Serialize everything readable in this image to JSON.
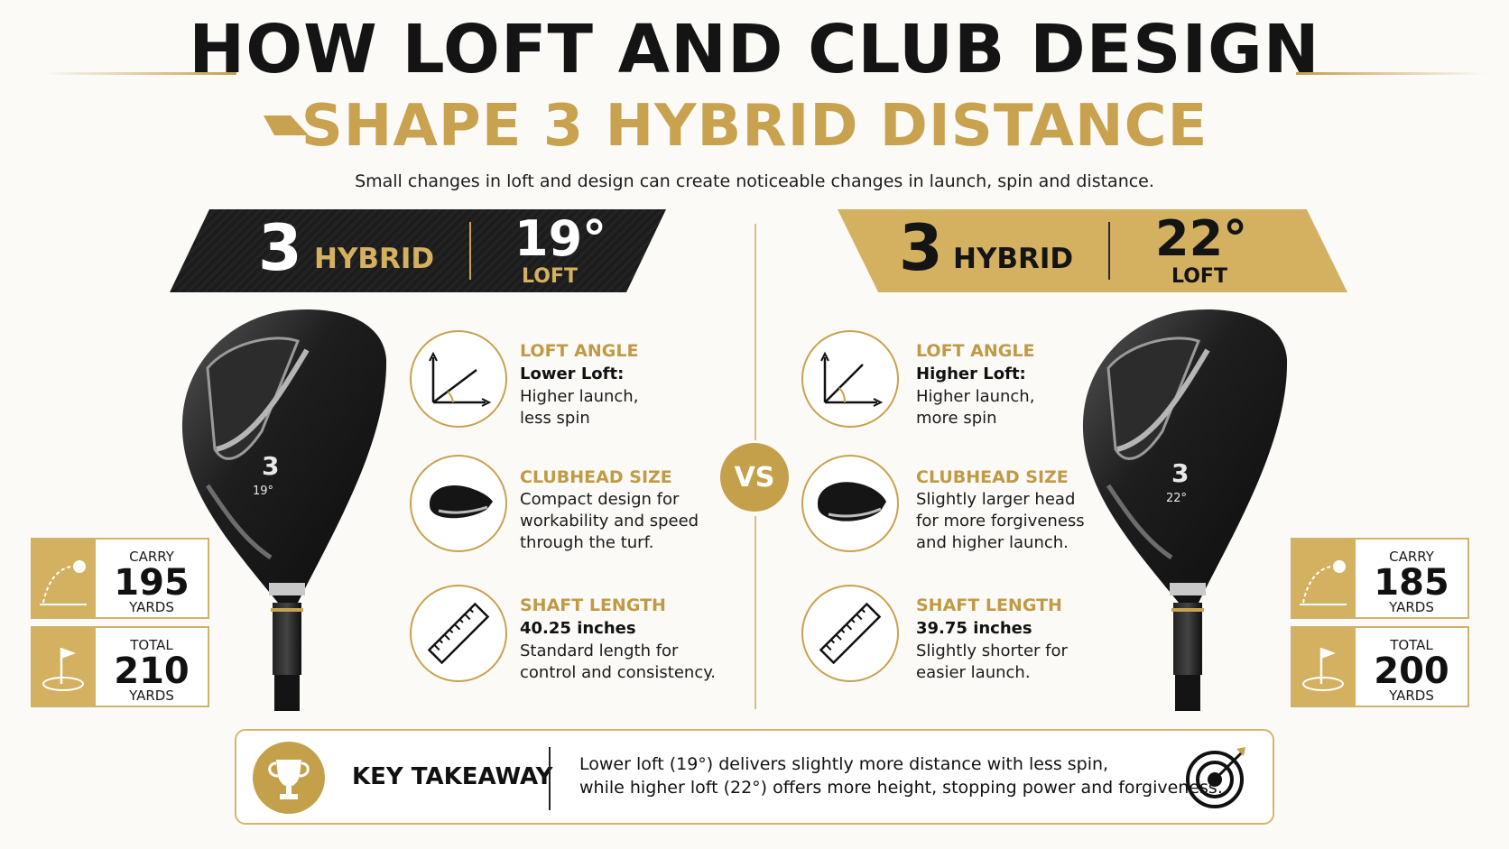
{
  "header": {
    "title": "HOW LOFT AND CLUB DESIGN",
    "subtitle": "SHAPE 3 HYBRID DISTANCE",
    "intro": "Small changes in loft and design can create noticeable changes in launch, spin and distance."
  },
  "left": {
    "club_number": "3",
    "club_type": "HYBRID",
    "loft_value": "19°",
    "loft_label": "LOFT",
    "head_number": "3",
    "head_loft": "19°",
    "features": [
      {
        "title": "LOFT ANGLE",
        "bold": "Lower Loft:",
        "lines": [
          "Higher launch,",
          "less spin"
        ],
        "icon": "loft-angle-icon"
      },
      {
        "title": "CLUBHEAD SIZE",
        "bold": "",
        "lines": [
          "Compact design for",
          "workability and speed",
          "through the turf."
        ],
        "icon": "clubhead-icon"
      },
      {
        "title": "SHAFT LENGTH",
        "bold": "40.25 inches",
        "lines": [
          "Standard length for",
          "control and consistency."
        ],
        "icon": "ruler-icon"
      }
    ],
    "carry": {
      "label": "CARRY",
      "value": "195",
      "unit": "YARDS"
    },
    "total": {
      "label": "TOTAL",
      "value": "210",
      "unit": "YARDS"
    }
  },
  "right": {
    "club_number": "3",
    "club_type": "HYBRID",
    "loft_value": "22°",
    "loft_label": "LOFT",
    "head_number": "3",
    "head_loft": "22°",
    "features": [
      {
        "title": "LOFT ANGLE",
        "bold": "Higher Loft:",
        "lines": [
          "Higher launch,",
          "more spin"
        ],
        "icon": "loft-angle-icon"
      },
      {
        "title": "CLUBHEAD SIZE",
        "bold": "",
        "lines": [
          "Slightly larger head",
          "for more forgiveness",
          "and higher launch."
        ],
        "icon": "clubhead-icon"
      },
      {
        "title": "SHAFT LENGTH",
        "bold": "39.75 inches",
        "lines": [
          "Slightly shorter for",
          "easier launch."
        ],
        "icon": "ruler-icon"
      }
    ],
    "carry": {
      "label": "CARRY",
      "value": "185",
      "unit": "YARDS"
    },
    "total": {
      "label": "TOTAL",
      "value": "200",
      "unit": "YARDS"
    }
  },
  "vs_label": "VS",
  "takeaway": {
    "title": "KEY TAKEAWAY",
    "lines": [
      "Lower loft (19°) delivers slightly more distance with less spin,",
      "while higher loft (22°) offers more height, stopping power and forgiveness."
    ]
  },
  "colors": {
    "gold": "#c8a24f",
    "dark": "#1c1c1c",
    "background": "#fbfaf7"
  }
}
